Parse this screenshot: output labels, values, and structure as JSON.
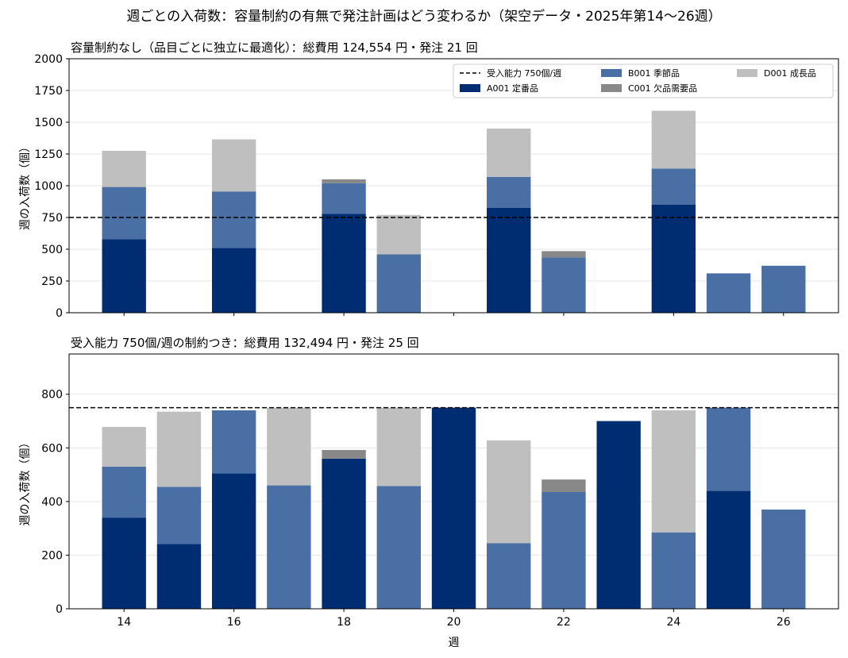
{
  "suptitle": "週ごとの入荷数：容量制約の有無で発注計画はどう変わるか（架空データ・2025年第14〜26週）",
  "chart_data": [
    {
      "type": "bar",
      "stacked": true,
      "title": "容量制約なし（品目ごとに独立に最適化）：総費用 124,554 円・発注 21 回",
      "ylabel": "週の入荷数（個）",
      "xlabel": "",
      "x": [
        14,
        15,
        16,
        17,
        18,
        19,
        20,
        21,
        22,
        23,
        24,
        25,
        26
      ],
      "xticks": [
        14,
        16,
        18,
        20,
        22,
        24,
        26
      ],
      "xtick_labels_shown": false,
      "ylim": [
        0,
        2000
      ],
      "yticks": [
        0,
        250,
        500,
        750,
        1000,
        1250,
        1500,
        1750,
        2000
      ],
      "capacity_line": {
        "value": 750,
        "label": "受入能力 750個/週",
        "style": "dashed"
      },
      "legend_position": "top-right",
      "grid": "horizontal",
      "series": [
        {
          "name": "A001 定番品",
          "color": "#002d72",
          "values": [
            580,
            0,
            510,
            0,
            780,
            0,
            0,
            825,
            0,
            0,
            850,
            0,
            0
          ]
        },
        {
          "name": "B001 季節品",
          "color": "#4a6fa5",
          "values": [
            410,
            0,
            445,
            0,
            240,
            460,
            0,
            245,
            435,
            0,
            285,
            310,
            370
          ]
        },
        {
          "name": "C001 欠品需要品",
          "color": "#888888",
          "values": [
            0,
            0,
            0,
            0,
            30,
            0,
            0,
            0,
            50,
            0,
            0,
            0,
            0
          ]
        },
        {
          "name": "D001 成長品",
          "color": "#bfbfbf",
          "values": [
            285,
            0,
            410,
            0,
            0,
            310,
            0,
            380,
            0,
            0,
            455,
            0,
            0
          ]
        }
      ]
    },
    {
      "type": "bar",
      "stacked": true,
      "title": "受入能力 750個/週の制約つき：総費用 132,494 円・発注 25 回",
      "ylabel": "週の入荷数（個）",
      "xlabel": "週",
      "x": [
        14,
        15,
        16,
        17,
        18,
        19,
        20,
        21,
        22,
        23,
        24,
        25,
        26
      ],
      "xticks": [
        14,
        16,
        18,
        20,
        22,
        24,
        26
      ],
      "xtick_labels_shown": true,
      "ylim": [
        0,
        950
      ],
      "yticks": [
        0,
        200,
        400,
        600,
        800
      ],
      "capacity_line": {
        "value": 750,
        "label": "受入能力 750個/週",
        "style": "dashed"
      },
      "grid": "horizontal",
      "series": [
        {
          "name": "A001 定番品",
          "color": "#002d72",
          "values": [
            340,
            242,
            505,
            0,
            560,
            0,
            750,
            0,
            0,
            700,
            0,
            440,
            0
          ]
        },
        {
          "name": "B001 季節品",
          "color": "#4a6fa5",
          "values": [
            190,
            213,
            235,
            460,
            0,
            458,
            0,
            245,
            435,
            0,
            285,
            310,
            370
          ]
        },
        {
          "name": "C001 欠品需要品",
          "color": "#888888",
          "values": [
            0,
            0,
            0,
            0,
            32,
            0,
            0,
            0,
            47,
            0,
            0,
            0,
            0
          ]
        },
        {
          "name": "D001 成長品",
          "color": "#bfbfbf",
          "values": [
            148,
            280,
            0,
            290,
            0,
            292,
            0,
            383,
            0,
            0,
            455,
            0,
            0
          ]
        }
      ]
    }
  ]
}
